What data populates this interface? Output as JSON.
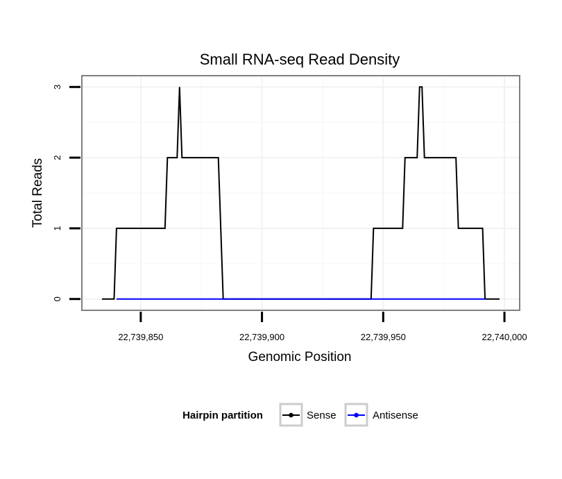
{
  "chart_data": {
    "type": "line",
    "title": "Small RNA-seq Read Density",
    "xlabel": "Genomic Position",
    "ylabel": "Total Reads",
    "xlim": [
      22739826,
      22740006
    ],
    "ylim": [
      -0.15,
      3.15
    ],
    "x_ticks": [
      22739850,
      22739900,
      22739950,
      22740000
    ],
    "x_tick_labels": [
      "22,739,850",
      "22,739,900",
      "22,739,950",
      "22,740,000"
    ],
    "y_ticks": [
      0,
      1,
      2,
      3
    ],
    "y_tick_labels": [
      "0",
      "1",
      "2",
      "3"
    ],
    "grid": true,
    "legend": {
      "title": "Hairpin partition",
      "position": "bottom"
    },
    "series": [
      {
        "name": "Sense",
        "color": "#000000",
        "x": [
          22739834,
          22739839,
          22739840,
          22739860,
          22739861,
          22739865,
          22739866,
          22739867,
          22739882,
          22739884,
          22739945,
          22739946,
          22739958,
          22739959,
          22739964,
          22739965,
          22739966,
          22739967,
          22739980,
          22739981,
          22739991,
          22739992,
          22739998
        ],
        "y": [
          0,
          0,
          1,
          1,
          2,
          2,
          3,
          2,
          2,
          0,
          0,
          1,
          1,
          2,
          2,
          3,
          3,
          2,
          2,
          1,
          1,
          0,
          0
        ]
      },
      {
        "name": "Antisense",
        "color": "#0000ff",
        "x": [
          22739840,
          22739884,
          22739945,
          22739992
        ],
        "y": [
          0,
          0,
          0,
          0
        ]
      }
    ]
  }
}
